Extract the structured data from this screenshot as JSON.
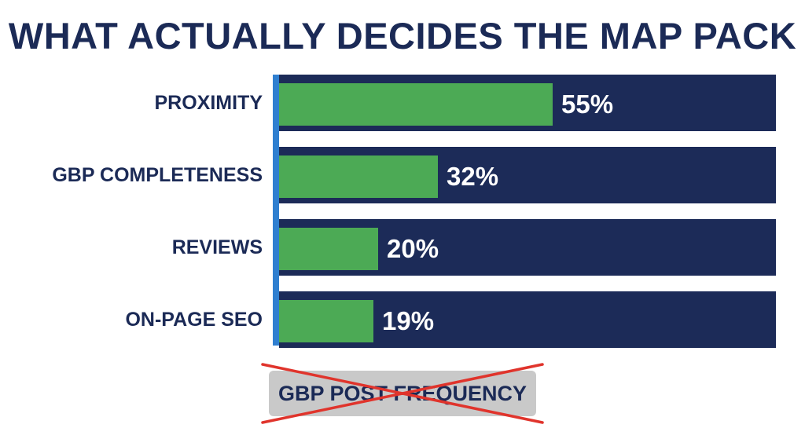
{
  "chart_data": {
    "type": "bar",
    "orientation": "horizontal",
    "title": "WHAT ACTUALLY DECIDES THE MAP PACK",
    "xlabel": "",
    "ylabel": "",
    "xlim": [
      0,
      100
    ],
    "categories": [
      "PROXIMITY",
      "GBP COMPLETENESS",
      "REVIEWS",
      "ON-PAGE SEO"
    ],
    "values": [
      55,
      32,
      20,
      19
    ],
    "value_labels": [
      "55%",
      "32%",
      "20%",
      "19%"
    ],
    "crossed_out_label": "GBP POST FREQUENCY",
    "legend": "none",
    "grid": false
  },
  "colors": {
    "title": "#1b2a56",
    "track": "#1c2b58",
    "bar": "#4caa55",
    "axis": "#2f7fd0",
    "cross": "#e0342c",
    "excluded_box": "#c9c9c9"
  }
}
